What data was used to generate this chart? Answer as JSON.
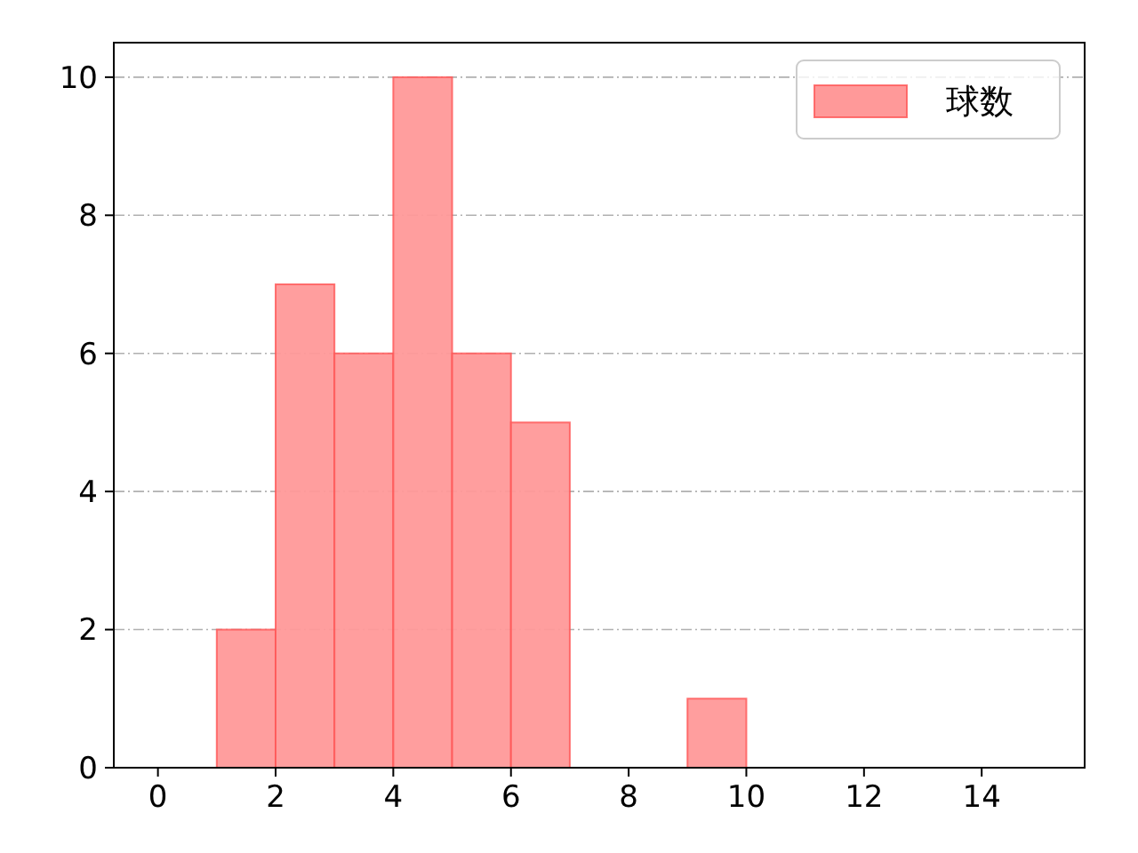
{
  "chart_data": {
    "type": "histogram",
    "bins": [
      0,
      1,
      2,
      3,
      4,
      5,
      6,
      7,
      8,
      9,
      10,
      11,
      12,
      13,
      14,
      15
    ],
    "series": [
      {
        "name": "球数",
        "color": "#ff9999",
        "values": [
          0,
          2,
          7,
          6,
          10,
          6,
          5,
          0,
          0,
          1,
          0,
          0,
          0,
          0,
          0
        ]
      }
    ],
    "xlim": [
      -0.75,
      15.75
    ],
    "ylim": [
      0,
      10.5
    ],
    "xticks": [
      0,
      2,
      4,
      6,
      8,
      10,
      12,
      14
    ],
    "yticks": [
      0,
      2,
      4,
      6,
      8,
      10
    ],
    "grid": "y",
    "legend": "top right"
  }
}
